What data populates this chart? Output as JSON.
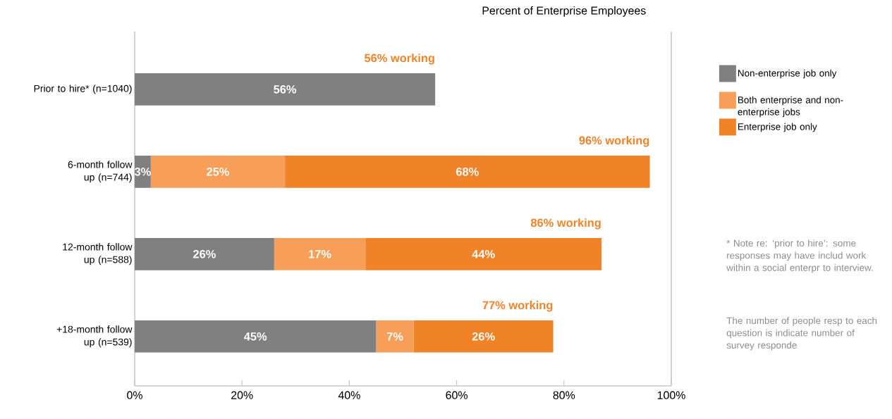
{
  "chart_data": {
    "type": "bar",
    "orientation": "horizontal",
    "stacked": true,
    "title": "Percent of Enterprise Employees",
    "categories": [
      "Prior to hire* (n=1040)",
      "6-month follow up (n=744)",
      "12-month follow up (n=588)",
      "+18-month follow up (n=539)"
    ],
    "series": [
      {
        "name": "Non-enterprise job only",
        "color": "#808080",
        "values": [
          56,
          3,
          26,
          45
        ],
        "value_labels": [
          "56%",
          "3%",
          "26%",
          "45%"
        ]
      },
      {
        "name": "Both enterprise and non-enterprise jobs",
        "color": "#f79f58",
        "values": [
          null,
          25,
          17,
          7
        ],
        "value_labels": [
          null,
          "25%",
          "17%",
          "7%"
        ]
      },
      {
        "name": "Enterprise job only",
        "color": "#f08228",
        "values": [
          null,
          68,
          44,
          26
        ],
        "value_labels": [
          null,
          "68%",
          "44%",
          "26%"
        ]
      }
    ],
    "totals": [
      "56% working",
      "96% working",
      "86% working",
      "77% working"
    ],
    "xlim": [
      0,
      100
    ],
    "xticks": [
      {
        "value": 0,
        "label": "0%"
      },
      {
        "value": 20,
        "label": "20%"
      },
      {
        "value": 40,
        "label": "40%"
      },
      {
        "value": 60,
        "label": "60%"
      },
      {
        "value": 80,
        "label": "80%"
      },
      {
        "value": 100,
        "label": "100%"
      }
    ],
    "legend": "right",
    "annotations": [
      "* Note re: ‘prior to hire’: some responses may have includ work within a social enterpr to interview.",
      "The number of people resp to each question is indicate number of survey responde"
    ]
  }
}
